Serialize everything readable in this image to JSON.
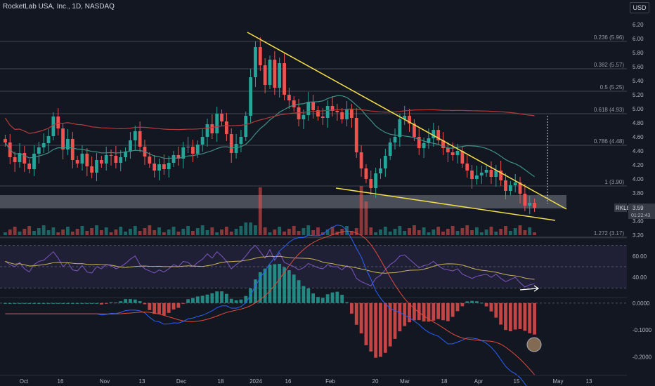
{
  "header": {
    "title": "RocketLab USA, Inc., 1D, NASDAQ",
    "currency": "USD"
  },
  "ticker": {
    "symbol": "RKLB",
    "price": "3.59",
    "countdown": "01:22:43"
  },
  "colors": {
    "up": "#26a69a",
    "down": "#ef5350",
    "trend": "#f5e04a",
    "ma50": "#3f8f86",
    "ma200": "#b53b3b",
    "rsi": "#7e57c2",
    "rsi_ma": "#c9b25a",
    "macd": "#2962ff",
    "signal": "#e04a3a"
  },
  "chart_data": [
    {
      "type": "candlestick",
      "title": "RocketLab USA, Inc., 1D, NASDAQ",
      "y_ticks": [
        "6.20",
        "6.00",
        "5.80",
        "5.60",
        "5.40",
        "5.20",
        "5.00",
        "4.80",
        "4.60",
        "4.40",
        "4.20",
        "4.00",
        "3.80",
        "3.60",
        "3.40",
        "3.20"
      ],
      "x_ticks": [
        "Oct",
        "16",
        "Nov",
        "13",
        "Dec",
        "18",
        "2024",
        "16",
        "Feb",
        "20",
        "Mar",
        "18",
        "Apr",
        "15",
        "May",
        "13"
      ],
      "ylim": [
        3.2,
        6.35
      ],
      "fib_levels": [
        {
          "label": "0.236 (5.96)",
          "value": 5.96
        },
        {
          "label": "0.382 (5.57)",
          "value": 5.57
        },
        {
          "label": "0.5 (5.25)",
          "value": 5.25
        },
        {
          "label": "0.618 (4.93)",
          "value": 4.93
        },
        {
          "label": "0.786 (4.48)",
          "value": 4.48
        },
        {
          "label": "1 (3.90)",
          "value": 3.9
        },
        {
          "label": "1.272 (3.17)",
          "value": 3.17
        }
      ],
      "support_zone": [
        3.58,
        3.77
      ],
      "closes": [
        4.52,
        4.31,
        4.24,
        4.37,
        4.22,
        4.14,
        4.36,
        4.45,
        4.51,
        4.61,
        4.89,
        4.72,
        4.42,
        4.57,
        4.27,
        4.22,
        4.36,
        4.18,
        4.09,
        4.27,
        4.22,
        4.34,
        4.33,
        4.23,
        4.31,
        4.39,
        4.55,
        4.68,
        4.46,
        4.32,
        4.22,
        4.12,
        4.21,
        4.14,
        4.23,
        4.34,
        4.29,
        4.45,
        4.46,
        4.36,
        4.49,
        4.6,
        4.78,
        4.65,
        4.93,
        4.82,
        4.64,
        4.37,
        4.5,
        4.6,
        4.9,
        5.45,
        5.88,
        5.62,
        5.34,
        5.7,
        5.3,
        5.65,
        5.2,
        5.12,
        5.02,
        4.85,
        4.91,
        5.1,
        4.98,
        4.89,
        4.87,
        5.04,
        4.97,
        4.95,
        4.85,
        4.99,
        4.87,
        4.38,
        4.15,
        4.0,
        3.87,
        4.08,
        4.15,
        4.33,
        4.52,
        4.6,
        4.85,
        4.9,
        4.79,
        4.6,
        4.44,
        4.51,
        4.58,
        4.7,
        4.55,
        4.44,
        4.38,
        4.34,
        4.4,
        4.22,
        4.12,
        4.0,
        4.05,
        4.09,
        4.13,
        4.03,
        4.12,
        3.98,
        3.83,
        3.91,
        3.95,
        3.79,
        3.62,
        3.66,
        3.59
      ],
      "volume_note": "volume bars shown under price",
      "series": [
        {
          "name": "",
          "type": "ma50"
        },
        {
          "name": "",
          "type": "ma200"
        }
      ]
    },
    {
      "type": "line",
      "y_ticks": [
        "60.00",
        "40.00"
      ],
      "ylim": [
        25,
        73
      ],
      "rsi": [
        55,
        52,
        50,
        54,
        48,
        45,
        52,
        55,
        56,
        60,
        64,
        58,
        50,
        54,
        47,
        46,
        51,
        45,
        44,
        50,
        48,
        52,
        51,
        48,
        50,
        53,
        57,
        60,
        52,
        48,
        46,
        44,
        47,
        45,
        48,
        52,
        50,
        55,
        54,
        50,
        54,
        57,
        62,
        58,
        64,
        60,
        55,
        48,
        52,
        55,
        60,
        66,
        70,
        64,
        58,
        66,
        56,
        63,
        54,
        52,
        50,
        47,
        49,
        53,
        51,
        49,
        48,
        52,
        50,
        50,
        47,
        51,
        48,
        39,
        36,
        34,
        32,
        39,
        42,
        47,
        52,
        55,
        60,
        61,
        57,
        53,
        49,
        51,
        52,
        55,
        51,
        48,
        47,
        46,
        48,
        43,
        41,
        39,
        41,
        42,
        43,
        40,
        43,
        39,
        36,
        38,
        40,
        35,
        31,
        33,
        34
      ]
    },
    {
      "type": "bar",
      "y_ticks": [
        "0.0000",
        "-0.1000",
        "-0.2000"
      ],
      "ylim": [
        -0.27,
        0.01
      ]
    }
  ]
}
